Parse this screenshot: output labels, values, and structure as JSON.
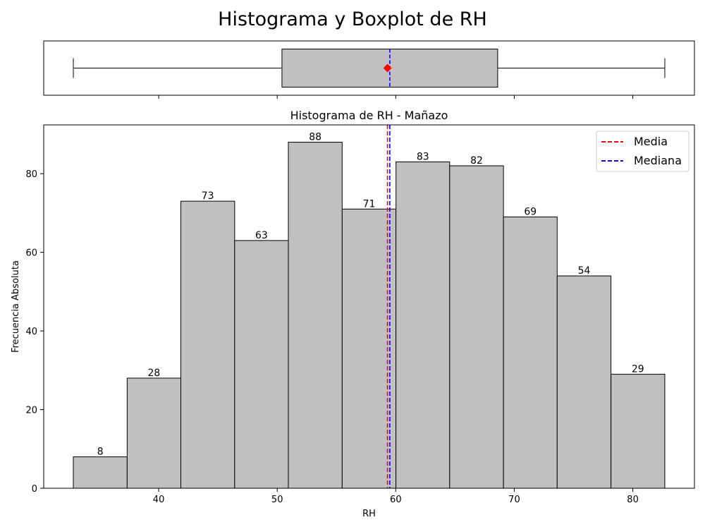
{
  "figure": {
    "suptitle": "Histograma y Boxplot de RH"
  },
  "colors": {
    "bar_fill": "#c0c0c0",
    "edge": "#000000",
    "mean": "#ff0000",
    "median": "#0000ff"
  },
  "chart_data": [
    {
      "type": "boxplot",
      "variable": "RH",
      "min": 32.8,
      "q1": 50.4,
      "median": 59.5,
      "q3": 68.6,
      "max": 82.7,
      "mean": 59.3,
      "xlim": [
        30.3,
        85.2
      ],
      "xticks": [
        40,
        50,
        60,
        70,
        80
      ],
      "show_tick_labels": false
    },
    {
      "type": "histogram",
      "title": "Histograma de RH - Mañazo",
      "xlabel": "RH",
      "ylabel": "Frecuencia Absoluta",
      "bin_edges": [
        32.8,
        37.34,
        41.87,
        46.41,
        50.94,
        55.48,
        60.02,
        64.55,
        69.09,
        73.62,
        78.16,
        82.7
      ],
      "values": [
        8,
        28,
        73,
        63,
        88,
        71,
        83,
        82,
        69,
        54,
        29
      ],
      "data_labels": [
        "8",
        "28",
        "73",
        "63",
        "88",
        "71",
        "83",
        "82",
        "69",
        "54",
        "29"
      ],
      "mean": 59.3,
      "median": 59.5,
      "xlim": [
        30.3,
        85.2
      ],
      "ylim": [
        0,
        92.4
      ],
      "xticks": [
        "40",
        "50",
        "60",
        "70",
        "80"
      ],
      "yticks": [
        "0",
        "20",
        "40",
        "60",
        "80"
      ],
      "legend": {
        "position": "top-right",
        "entries": [
          "Media",
          "Mediana"
        ]
      },
      "grid": false
    }
  ]
}
